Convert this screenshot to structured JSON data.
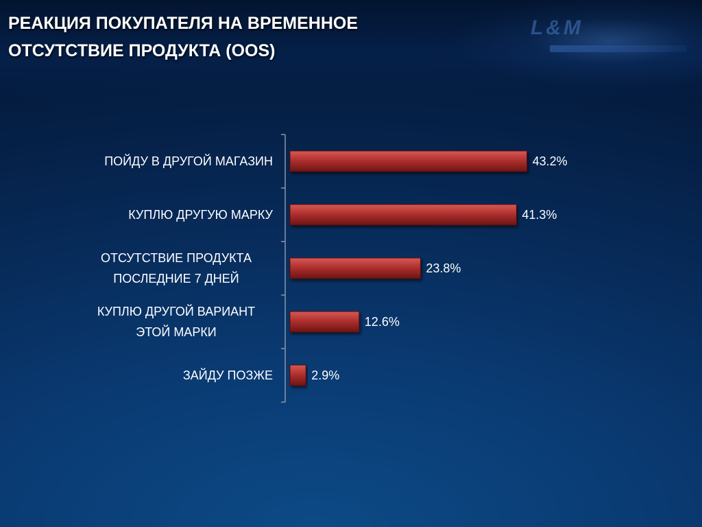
{
  "slide": {
    "title_lines": [
      "РЕАКЦИЯ ПОКУПАТЕЛЯ НА ВРЕМЕННОЕ",
      "ОТСУТСТВИЕ ПРОДУКТА (OOS)"
    ],
    "logo_text": "L&M",
    "background_color": "#072a58"
  },
  "chart_data": {
    "type": "bar",
    "orientation": "horizontal",
    "categories": [
      "ПОЙДУ В ДРУГОЙ МАГАЗИН",
      "КУПЛЮ ДРУГУЮ МАРКУ",
      "ОТСУТСТВИЕ ПРОДУКТА ПОСЛЕДНИЕ 7 ДНЕЙ",
      "КУПЛЮ ДРУГОЙ ВАРИАНТ ЭТОЙ МАРКИ",
      "ЗАЙДУ ПОЗЖЕ"
    ],
    "category_label_lines": [
      [
        "ПОЙДУ В ДРУГОЙ МАГАЗИН"
      ],
      [
        "КУПЛЮ ДРУГУЮ МАРКУ"
      ],
      [
        "ОТСУТСТВИЕ ПРОДУКТА",
        "ПОСЛЕДНИЕ 7 ДНЕЙ"
      ],
      [
        "КУПЛЮ ДРУГОЙ ВАРИАНТ",
        "ЭТОЙ МАРКИ"
      ],
      [
        "ЗАЙДУ ПОЗЖЕ"
      ]
    ],
    "values": [
      43.2,
      41.3,
      23.8,
      12.6,
      2.9
    ],
    "value_labels": [
      "43.2%",
      "41.3%",
      "23.8%",
      "12.6%",
      "2.9%"
    ],
    "unit": "%",
    "xlim": [
      0,
      100
    ],
    "grid": false,
    "legend": "none",
    "bar_color": "#b0302e"
  }
}
